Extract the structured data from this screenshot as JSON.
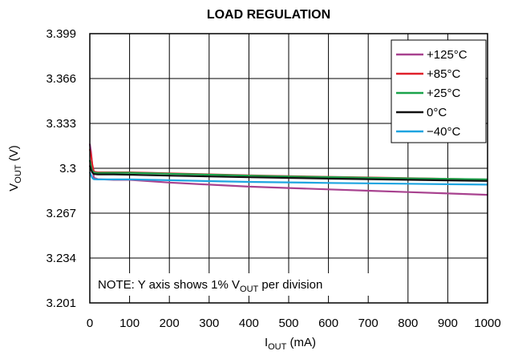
{
  "chart_data": {
    "type": "line",
    "title": "LOAD REGULATION",
    "xlabel": {
      "main": "I",
      "sub": "OUT",
      "suffix": " (mA)"
    },
    "ylabel": {
      "main": "V",
      "sub": "OUT",
      "suffix": " (V)"
    },
    "xlim": [
      0,
      1000
    ],
    "ylim": [
      3.201,
      3.399
    ],
    "x_ticks": [
      0,
      100,
      200,
      300,
      400,
      500,
      600,
      700,
      800,
      900,
      1000
    ],
    "x_tick_labels": [
      "0",
      "100",
      "200",
      "300",
      "400",
      "500",
      "600",
      "700",
      "800",
      "900",
      "1000"
    ],
    "y_ticks": [
      3.399,
      3.366,
      3.333,
      3.3,
      3.267,
      3.234,
      3.201
    ],
    "y_tick_labels": [
      "3.399",
      "3.366",
      "3.333",
      "3.3",
      "3.267",
      "3.234",
      "3.201"
    ],
    "grid": true,
    "legend_position": "top-right",
    "note": {
      "prefix": "NOTE: Y axis shows 1% V",
      "sub": "OUT",
      "suffix": " per division"
    },
    "series": [
      {
        "name": "+125°C",
        "color": "#a8428f",
        "points": [
          [
            0,
            3.318
          ],
          [
            3,
            3.312
          ],
          [
            6,
            3.302
          ],
          [
            10,
            3.293
          ],
          [
            20,
            3.292
          ],
          [
            60,
            3.2915
          ],
          [
            100,
            3.2915
          ],
          [
            200,
            3.2895
          ],
          [
            300,
            3.288
          ],
          [
            400,
            3.2865
          ],
          [
            500,
            3.2855
          ],
          [
            600,
            3.2845
          ],
          [
            700,
            3.2835
          ],
          [
            800,
            3.2825
          ],
          [
            900,
            3.2815
          ],
          [
            1000,
            3.2805
          ]
        ]
      },
      {
        "name": "+85°C",
        "color": "#e0202a",
        "points": [
          [
            0,
            3.314
          ],
          [
            3,
            3.31
          ],
          [
            6,
            3.303
          ],
          [
            10,
            3.2975
          ],
          [
            20,
            3.297
          ],
          [
            60,
            3.297
          ],
          [
            100,
            3.297
          ],
          [
            200,
            3.2962
          ],
          [
            300,
            3.2955
          ],
          [
            400,
            3.2948
          ],
          [
            500,
            3.2942
          ],
          [
            600,
            3.2937
          ],
          [
            700,
            3.2932
          ],
          [
            800,
            3.2927
          ],
          [
            900,
            3.2922
          ],
          [
            1000,
            3.2917
          ]
        ]
      },
      {
        "name": "+25°C",
        "color": "#1aa34a",
        "points": [
          [
            0,
            3.306
          ],
          [
            3,
            3.301
          ],
          [
            6,
            3.298
          ],
          [
            10,
            3.2968
          ],
          [
            20,
            3.2966
          ],
          [
            60,
            3.2967
          ],
          [
            100,
            3.2967
          ],
          [
            200,
            3.296
          ],
          [
            300,
            3.2953
          ],
          [
            400,
            3.2946
          ],
          [
            500,
            3.294
          ],
          [
            600,
            3.2935
          ],
          [
            700,
            3.293
          ],
          [
            800,
            3.2926
          ],
          [
            900,
            3.2922
          ],
          [
            1000,
            3.2918
          ]
        ]
      },
      {
        "name": "0°C",
        "color": "#111111",
        "points": [
          [
            0,
            3.302
          ],
          [
            3,
            3.299
          ],
          [
            6,
            3.297
          ],
          [
            10,
            3.2958
          ],
          [
            20,
            3.2955
          ],
          [
            60,
            3.2955
          ],
          [
            100,
            3.2953
          ],
          [
            200,
            3.2946
          ],
          [
            300,
            3.294
          ],
          [
            400,
            3.2934
          ],
          [
            500,
            3.2929
          ],
          [
            600,
            3.2924
          ],
          [
            700,
            3.292
          ],
          [
            800,
            3.2915
          ],
          [
            900,
            3.2911
          ],
          [
            1000,
            3.2907
          ]
        ]
      },
      {
        "name": "−40°C",
        "color": "#1ea4e0",
        "points": [
          [
            0,
            3.297
          ],
          [
            3,
            3.295
          ],
          [
            6,
            3.293
          ],
          [
            10,
            3.292
          ],
          [
            20,
            3.2918
          ],
          [
            60,
            3.2918
          ],
          [
            100,
            3.2918
          ],
          [
            200,
            3.2912
          ],
          [
            300,
            3.2906
          ],
          [
            400,
            3.29
          ],
          [
            500,
            3.2896
          ],
          [
            600,
            3.2892
          ],
          [
            700,
            3.2889
          ],
          [
            800,
            3.2886
          ],
          [
            900,
            3.2883
          ],
          [
            1000,
            3.288
          ]
        ]
      }
    ]
  }
}
